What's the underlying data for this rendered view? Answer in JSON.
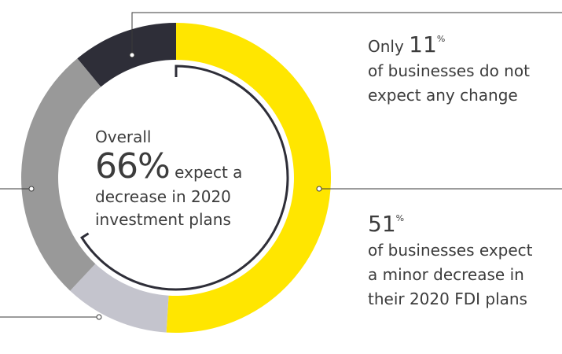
{
  "chart_data": {
    "type": "pie",
    "style": "donut",
    "center_text": {
      "line1": "Overall",
      "big_value": "66%",
      "big_suffix": "expect a",
      "line3": "decrease in 2020",
      "line4": "investment plans"
    },
    "segments": [
      {
        "value": 51,
        "color": "#ffe600"
      },
      {
        "value": 11,
        "color": "#c4c4cd"
      },
      {
        "value": 27,
        "color": "#999999"
      },
      {
        "value": 11,
        "color": "#2e2e38"
      }
    ],
    "inner_arc_percent": 66,
    "annotations": [
      {
        "prefix": "Only",
        "value": "11",
        "unit": "%",
        "line2": "of businesses do not",
        "line3": "expect any change"
      },
      {
        "prefix": "",
        "value": "51",
        "unit": "%",
        "line2": "of businesses expect",
        "line3": "a minor decrease in",
        "line4": "their 2020 FDI plans"
      }
    ]
  }
}
